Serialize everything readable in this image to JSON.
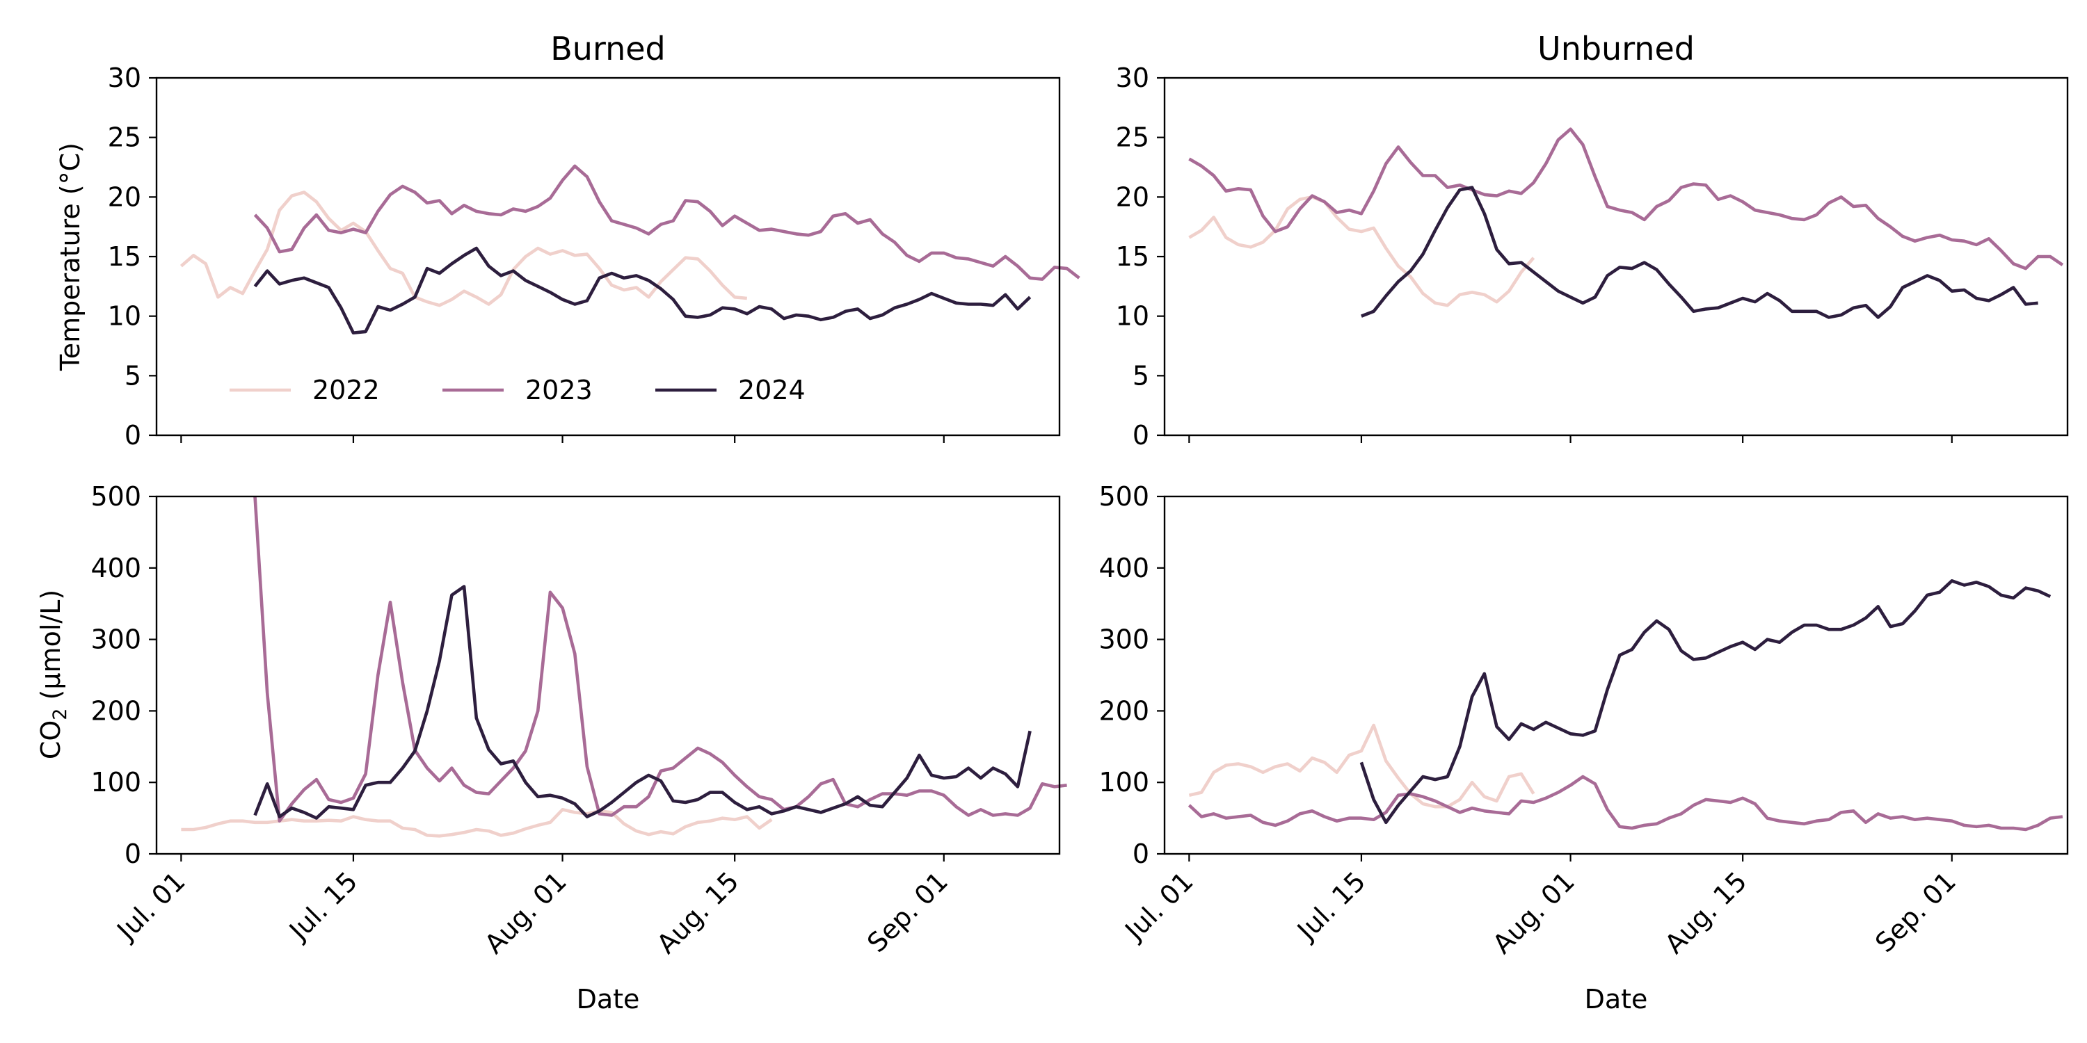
{
  "figure": {
    "xlabel": "Date",
    "ylabel_temperature": "Temperature (°C)",
    "ylabel_co2_prefix": "CO",
    "ylabel_co2_sub": "2",
    "ylabel_co2_suffix": " (µmol/L)"
  },
  "legend": {
    "location": "lower-left of top-left panel",
    "entries": [
      {
        "label": "2022",
        "color": "#f0d0cb"
      },
      {
        "label": "2023",
        "color": "#a86b96"
      },
      {
        "label": "2024",
        "color": "#2d1e3e"
      }
    ]
  },
  "chart_data": [
    {
      "type": "line",
      "title": "Burned",
      "ylabel": "Temperature (°C)",
      "ylim": [
        0,
        30
      ],
      "yticks": [
        0,
        5,
        10,
        15,
        20,
        25,
        30
      ],
      "xaxis": "date (month-day)",
      "xlim": [
        "07-01",
        "09-09"
      ],
      "xticks": [
        "Jul. 01",
        "Jul. 15",
        "Aug. 01",
        "Aug. 15",
        "Sep. 01"
      ],
      "grid": false,
      "series": [
        {
          "name": "2022",
          "color": "#f0d0cb",
          "start": "07-01",
          "values": [
            14.2,
            15.1,
            14.4,
            11.6,
            12.4,
            11.9,
            13.8,
            15.6,
            18.9,
            20.1,
            20.4,
            19.6,
            18.2,
            17.2,
            17.8,
            17.1,
            15.5,
            14.0,
            13.6,
            11.6,
            11.2,
            10.9,
            11.4,
            12.1,
            11.6,
            11.0,
            11.8,
            13.9,
            15.0,
            15.7,
            15.2,
            15.5,
            15.1,
            15.2,
            14.0,
            12.6,
            12.2,
            12.4,
            11.6,
            12.9,
            13.9,
            14.9,
            14.8,
            13.8,
            12.6,
            11.6,
            11.5
          ]
        },
        {
          "name": "2023",
          "color": "#a86b96",
          "start": "07-07",
          "values": [
            18.5,
            17.4,
            15.4,
            15.6,
            17.4,
            18.5,
            17.2,
            17.0,
            17.3,
            17.0,
            18.8,
            20.2,
            20.9,
            20.4,
            19.5,
            19.7,
            18.6,
            19.3,
            18.8,
            18.6,
            18.5,
            19.0,
            18.8,
            19.2,
            19.9,
            21.4,
            22.6,
            21.7,
            19.6,
            18.0,
            17.7,
            17.4,
            16.9,
            17.7,
            18.0,
            19.7,
            19.6,
            18.8,
            17.6,
            18.4,
            17.8,
            17.2,
            17.3,
            17.1,
            16.9,
            16.8,
            17.1,
            18.4,
            18.6,
            17.8,
            18.1,
            16.9,
            16.2,
            15.1,
            14.6,
            15.3,
            15.3,
            14.9,
            14.8,
            14.5,
            14.2,
            15.0,
            14.2,
            13.2,
            13.1,
            14.1,
            14.0,
            13.2
          ]
        },
        {
          "name": "2024",
          "color": "#2d1e3e",
          "start": "07-07",
          "values": [
            12.5,
            13.8,
            12.7,
            13.0,
            13.2,
            12.8,
            12.4,
            10.7,
            8.6,
            8.7,
            10.8,
            10.5,
            11.0,
            11.6,
            14.0,
            13.6,
            14.4,
            15.1,
            15.7,
            14.2,
            13.4,
            13.8,
            13.0,
            12.5,
            12.0,
            11.4,
            11.0,
            11.3,
            13.2,
            13.6,
            13.2,
            13.4,
            13.0,
            12.3,
            11.4,
            10.0,
            9.9,
            10.1,
            10.7,
            10.6,
            10.2,
            10.8,
            10.6,
            9.8,
            10.1,
            10.0,
            9.7,
            9.9,
            10.4,
            10.6,
            9.8,
            10.1,
            10.7,
            11.0,
            11.4,
            11.9,
            11.5,
            11.1,
            11.0,
            11.0,
            10.9,
            11.8,
            10.6,
            11.6
          ]
        }
      ]
    },
    {
      "type": "line",
      "title": "Unburned",
      "ylabel": "",
      "ylim": [
        0,
        30
      ],
      "yticks": [
        0,
        5,
        10,
        15,
        20,
        25,
        30
      ],
      "xaxis": "date (month-day)",
      "xlim": [
        "07-01",
        "09-09"
      ],
      "xticks": [
        "Jul. 01",
        "Jul. 15",
        "Aug. 01",
        "Aug. 15",
        "Sep. 01"
      ],
      "grid": false,
      "series": [
        {
          "name": "2022",
          "color": "#f0d0cb",
          "start": "07-01",
          "values": [
            16.6,
            17.2,
            18.3,
            16.6,
            16.0,
            15.8,
            16.2,
            17.2,
            19.0,
            19.8,
            20.0,
            19.6,
            18.3,
            17.3,
            17.1,
            17.4,
            15.7,
            14.2,
            13.3,
            11.9,
            11.1,
            10.9,
            11.8,
            12.0,
            11.8,
            11.2,
            12.1,
            13.7,
            14.9
          ]
        },
        {
          "name": "2023",
          "color": "#a86b96",
          "start": "07-01",
          "values": [
            23.2,
            22.6,
            21.8,
            20.5,
            20.7,
            20.6,
            18.4,
            17.1,
            17.5,
            19.0,
            20.1,
            19.6,
            18.7,
            18.9,
            18.6,
            20.5,
            22.8,
            24.2,
            22.9,
            21.8,
            21.8,
            20.8,
            21.0,
            20.6,
            20.2,
            20.1,
            20.5,
            20.3,
            21.2,
            22.8,
            24.8,
            25.7,
            24.4,
            21.7,
            19.2,
            18.9,
            18.7,
            18.1,
            19.2,
            19.7,
            20.8,
            21.1,
            21.0,
            19.8,
            20.1,
            19.6,
            18.9,
            18.7,
            18.5,
            18.2,
            18.1,
            18.5,
            19.5,
            20.0,
            19.2,
            19.3,
            18.2,
            17.5,
            16.7,
            16.3,
            16.6,
            16.8,
            16.4,
            16.3,
            16.0,
            16.5,
            15.5,
            14.4,
            14.0,
            15.0,
            15.0,
            14.3
          ]
        },
        {
          "name": "2024",
          "color": "#2d1e3e",
          "start": "07-15",
          "values": [
            10.0,
            10.4,
            11.7,
            12.9,
            13.8,
            15.2,
            17.2,
            19.1,
            20.6,
            20.8,
            18.6,
            15.6,
            14.4,
            14.5,
            13.7,
            12.9,
            12.1,
            11.6,
            11.1,
            11.6,
            13.4,
            14.1,
            14.0,
            14.5,
            13.9,
            12.7,
            11.6,
            10.4,
            10.6,
            10.7,
            11.1,
            11.5,
            11.2,
            11.9,
            11.3,
            10.4,
            10.4,
            10.4,
            9.9,
            10.1,
            10.7,
            10.9,
            9.9,
            10.8,
            12.4,
            12.9,
            13.4,
            13.0,
            12.1,
            12.2,
            11.5,
            11.3,
            11.8,
            12.4,
            11.0,
            11.1
          ]
        }
      ]
    },
    {
      "type": "line",
      "title": "",
      "ylabel": "CO2 (µmol/L)",
      "ylim": [
        0,
        500
      ],
      "yticks": [
        0,
        100,
        200,
        300,
        400,
        500
      ],
      "xaxis": "date (month-day)",
      "xlim": [
        "07-01",
        "09-09"
      ],
      "xticks": [
        "Jul. 01",
        "Jul. 15",
        "Aug. 01",
        "Aug. 15",
        "Sep. 01"
      ],
      "xlabel": "Date",
      "grid": false,
      "series": [
        {
          "name": "2022",
          "color": "#f0d0cb",
          "start": "07-01",
          "values": [
            34,
            34,
            37,
            42,
            46,
            46,
            44,
            44,
            46,
            48,
            46,
            46,
            47,
            46,
            52,
            48,
            46,
            46,
            36,
            34,
            26,
            25,
            27,
            30,
            34,
            32,
            26,
            29,
            35,
            40,
            44,
            62,
            58,
            56,
            60,
            58,
            42,
            32,
            27,
            31,
            28,
            38,
            44,
            46,
            50,
            48,
            52,
            36,
            48
          ]
        },
        {
          "name": "2023",
          "color": "#a86b96",
          "start": "07-07",
          "values": [
            500,
            225,
            46,
            70,
            90,
            104,
            76,
            72,
            78,
            112,
            250,
            352,
            240,
            145,
            120,
            102,
            120,
            96,
            86,
            84,
            102,
            120,
            144,
            200,
            366,
            344,
            280,
            122,
            56,
            54,
            66,
            66,
            80,
            116,
            120,
            134,
            148,
            140,
            128,
            110,
            94,
            80,
            76,
            62,
            66,
            80,
            98,
            104,
            70,
            66,
            76,
            84,
            84,
            82,
            88,
            88,
            82,
            66,
            54,
            62,
            54,
            56,
            54,
            64,
            98,
            94,
            96
          ]
        },
        {
          "name": "2024",
          "color": "#2d1e3e",
          "start": "07-07",
          "values": [
            54,
            98,
            52,
            64,
            58,
            50,
            66,
            64,
            62,
            96,
            100,
            100,
            120,
            144,
            200,
            270,
            362,
            374,
            190,
            146,
            126,
            130,
            100,
            80,
            82,
            78,
            70,
            52,
            60,
            72,
            86,
            100,
            110,
            102,
            74,
            72,
            76,
            86,
            86,
            72,
            62,
            66,
            56,
            60,
            66,
            62,
            58,
            64,
            70,
            80,
            68,
            66,
            86,
            106,
            138,
            110,
            106,
            108,
            120,
            106,
            120,
            112,
            94,
            172
          ]
        }
      ]
    },
    {
      "type": "line",
      "title": "",
      "ylabel": "",
      "ylim": [
        0,
        500
      ],
      "yticks": [
        0,
        100,
        200,
        300,
        400,
        500
      ],
      "xaxis": "date (month-day)",
      "xlim": [
        "07-01",
        "09-09"
      ],
      "xticks": [
        "Jul. 01",
        "Jul. 15",
        "Aug. 01",
        "Aug. 15",
        "Sep. 01"
      ],
      "xlabel": "Date",
      "grid": false,
      "series": [
        {
          "name": "2022",
          "color": "#f0d0cb",
          "start": "07-01",
          "values": [
            82,
            86,
            114,
            124,
            126,
            122,
            114,
            122,
            126,
            116,
            134,
            128,
            114,
            138,
            144,
            180,
            130,
            106,
            84,
            70,
            66,
            66,
            76,
            100,
            80,
            74,
            108,
            112,
            84
          ]
        },
        {
          "name": "2023",
          "color": "#a86b96",
          "start": "07-01",
          "values": [
            68,
            52,
            56,
            50,
            52,
            54,
            44,
            40,
            46,
            56,
            60,
            52,
            46,
            50,
            50,
            48,
            58,
            82,
            84,
            80,
            74,
            66,
            58,
            64,
            60,
            58,
            56,
            74,
            72,
            78,
            86,
            96,
            108,
            98,
            62,
            38,
            36,
            40,
            42,
            50,
            56,
            68,
            76,
            74,
            72,
            78,
            70,
            50,
            46,
            44,
            42,
            46,
            48,
            58,
            60,
            44,
            56,
            50,
            52,
            48,
            50,
            48,
            46,
            40,
            38,
            40,
            36,
            36,
            34,
            40,
            50,
            52
          ]
        },
        {
          "name": "2024",
          "color": "#2d1e3e",
          "start": "07-15",
          "values": [
            128,
            76,
            44,
            68,
            88,
            108,
            104,
            108,
            150,
            220,
            252,
            178,
            160,
            182,
            174,
            184,
            176,
            168,
            166,
            172,
            230,
            278,
            286,
            310,
            326,
            314,
            284,
            272,
            274,
            282,
            290,
            296,
            286,
            300,
            296,
            310,
            320,
            320,
            314,
            314,
            320,
            330,
            346,
            318,
            322,
            340,
            362,
            366,
            382,
            376,
            380,
            374,
            362,
            358,
            372,
            368,
            360
          ]
        }
      ]
    }
  ]
}
